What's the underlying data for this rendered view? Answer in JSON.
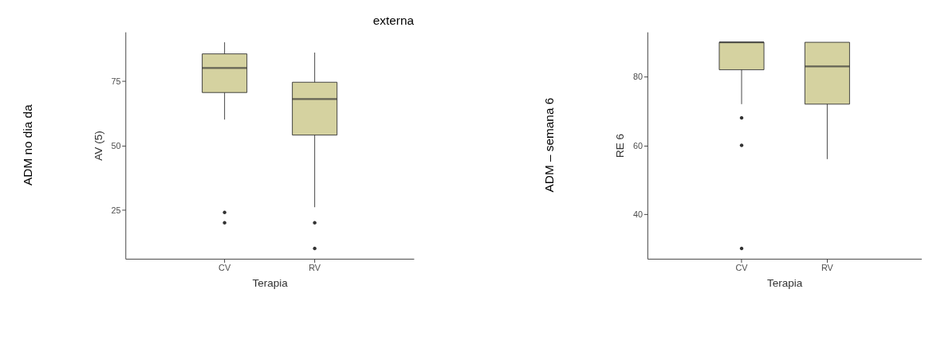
{
  "chart_data": [
    {
      "type": "box",
      "title": "externa",
      "xlabel": "Terapia",
      "ylabel": "AV (5)",
      "annotations": [
        "ADM no dia da"
      ],
      "categories": [
        "CV",
        "RV"
      ],
      "ylim": [
        6,
        94
      ],
      "yticks": [
        25,
        50,
        75
      ],
      "series": [
        {
          "color": "#d5d2a0",
          "boxes": [
            {
              "low": 60,
              "q1": 70.5,
              "median": 80,
              "q3": 85.5,
              "high": 90,
              "outliers": [
                24,
                20
              ]
            },
            {
              "low": 26,
              "q1": 54,
              "median": 68,
              "q3": 74.5,
              "high": 86,
              "outliers": [
                20,
                10
              ]
            }
          ]
        }
      ]
    },
    {
      "type": "box",
      "xlabel": "Terapia",
      "ylabel": "RE 6",
      "annotations": [
        "ADM – semana 6"
      ],
      "categories": [
        "CV",
        "RV"
      ],
      "ylim": [
        27,
        93
      ],
      "yticks": [
        40,
        60,
        80
      ],
      "series": [
        {
          "color": "#d5d2a0",
          "boxes": [
            {
              "low": 72,
              "q1": 82,
              "median": 90,
              "q3": 90,
              "high": 90,
              "outliers": [
                68,
                60,
                30
              ]
            },
            {
              "low": 56,
              "q1": 72,
              "median": 83,
              "q3": 90,
              "high": 90
            }
          ]
        }
      ]
    }
  ]
}
